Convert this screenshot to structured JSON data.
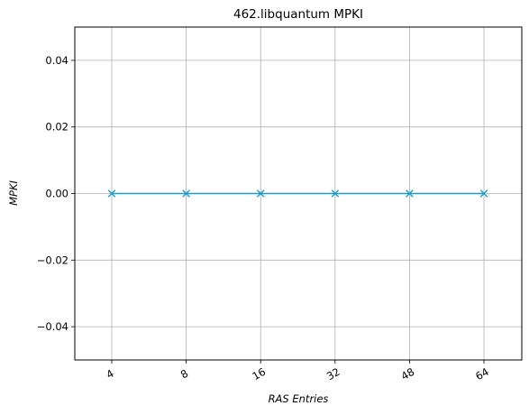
{
  "chart_data": {
    "type": "line",
    "title": "462.libquantum MPKI",
    "xlabel": "RAS Entries",
    "ylabel": "MPKI",
    "categories": [
      "4",
      "8",
      "16",
      "32",
      "48",
      "64"
    ],
    "series": [
      {
        "name": "MPKI",
        "values": [
          0.0,
          0.0,
          0.0,
          0.0,
          0.0,
          0.0
        ],
        "color": "#1f9bcf",
        "marker": "x"
      }
    ],
    "ylim": [
      -0.05,
      0.05
    ],
    "yticks": [
      -0.04,
      -0.02,
      0.0,
      0.02,
      0.04
    ],
    "ytick_labels": [
      "−0.04",
      "−0.02",
      "0.00",
      "0.02",
      "0.04"
    ],
    "xtick_rotation": "rotated ~30 degrees",
    "grid": true,
    "grid_color": "#b0b0b0",
    "legend": "none"
  }
}
